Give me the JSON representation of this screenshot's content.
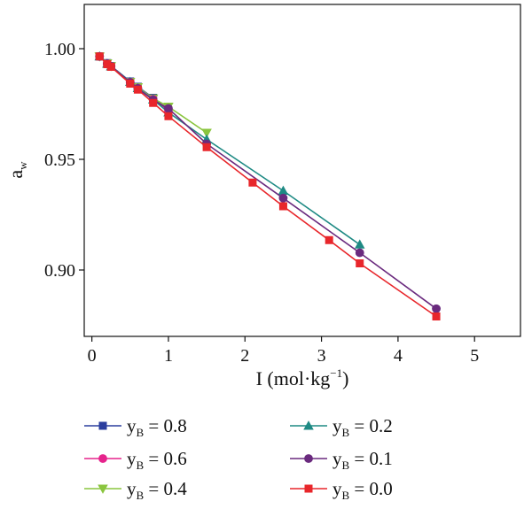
{
  "chart_data": {
    "type": "line",
    "xlabel_main": "I (mol·kg",
    "xlabel_sup": "−1",
    "xlabel_close": ")",
    "ylabel_main": "a",
    "ylabel_sub": "w",
    "xlim": [
      -0.1,
      5.6
    ],
    "ylim": [
      0.87,
      1.02
    ],
    "xticks": [
      0,
      1,
      2,
      3,
      4,
      5
    ],
    "xtick_labels": [
      "0",
      "1",
      "2",
      "3",
      "4",
      "5"
    ],
    "yticks": [
      0.9,
      0.95,
      1.0
    ],
    "ytick_labels": [
      "0.90",
      "0.95",
      "1.00"
    ],
    "grid": false,
    "legend_position": "bottom",
    "series": [
      {
        "name_main": "y",
        "name_sub": "B",
        "name_rest": " = 0.8",
        "color": "#2b3e9e",
        "marker": "square",
        "x": [
          0.1,
          0.2,
          0.25,
          0.5,
          0.6,
          0.8,
          1.0
        ],
        "y": [
          0.9965,
          0.9935,
          0.9922,
          0.9852,
          0.9828,
          0.9778,
          0.9718
        ]
      },
      {
        "name_main": "y",
        "name_sub": "B",
        "name_rest": " = 0.2",
        "color": "#1e8a84",
        "marker": "triangle-up",
        "x": [
          0.1,
          0.2,
          0.25,
          0.5,
          0.6,
          0.8,
          1.0,
          1.5,
          2.5,
          3.5
        ],
        "y": [
          0.9965,
          0.9932,
          0.992,
          0.985,
          0.9822,
          0.977,
          0.9712,
          0.959,
          0.9358,
          0.9115
        ]
      },
      {
        "name_main": "y",
        "name_sub": "B",
        "name_rest": " = 0.6",
        "color": "#e6238c",
        "marker": "circle",
        "x": [
          0.1,
          0.2,
          0.25,
          0.5,
          0.6,
          0.8,
          1.0
        ],
        "y": [
          0.9965,
          0.9933,
          0.9921,
          0.9849,
          0.9822,
          0.9772,
          0.9716
        ]
      },
      {
        "name_main": "y",
        "name_sub": "B",
        "name_rest": " = 0.1",
        "color": "#6a2a7e",
        "marker": "circle",
        "x": [
          0.1,
          0.2,
          0.25,
          0.5,
          0.6,
          0.8,
          1.0,
          1.5,
          2.5,
          3.5,
          4.5
        ],
        "y": [
          0.9965,
          0.9932,
          0.992,
          0.9848,
          0.982,
          0.9768,
          0.973,
          0.957,
          0.9325,
          0.9078,
          0.8825
        ]
      },
      {
        "name_main": "y",
        "name_sub": "B",
        "name_rest": " = 0.4",
        "color": "#8ac53e",
        "marker": "triangle-down",
        "x": [
          0.1,
          0.2,
          0.25,
          0.5,
          0.6,
          0.8,
          1.0,
          1.5
        ],
        "y": [
          0.9965,
          0.9934,
          0.9921,
          0.985,
          0.9826,
          0.9775,
          0.9738,
          0.962
        ]
      },
      {
        "name_main": "y",
        "name_sub": "B",
        "name_rest": " = 0.0",
        "color": "#e8262b",
        "marker": "square",
        "x": [
          0.1,
          0.2,
          0.25,
          0.5,
          0.6,
          0.8,
          1.0,
          1.5,
          2.1,
          2.5,
          3.1,
          3.5,
          4.5
        ],
        "y": [
          0.9965,
          0.993,
          0.9918,
          0.9842,
          0.9815,
          0.9755,
          0.9695,
          0.9555,
          0.9395,
          0.9288,
          0.9135,
          0.903,
          0.879
        ]
      }
    ]
  }
}
